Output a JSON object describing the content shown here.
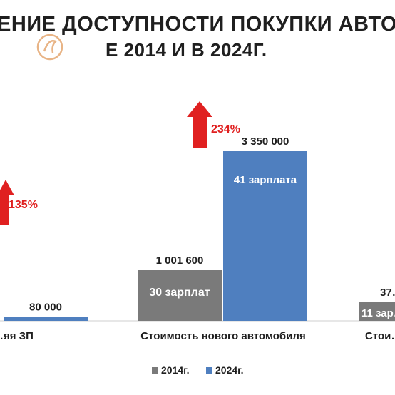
{
  "title": {
    "line1": "ЕНИЕ ДОСТУПНОСТИ ПОКУПКИ АВТОМ",
    "line2": "Е 2014 И В  2024Г."
  },
  "chart_data": {
    "type": "bar",
    "categories": [
      "…яя ЗП",
      "Стоимость нового автомобиля",
      "Стои…"
    ],
    "series": [
      {
        "name": "2014г.",
        "color": "#7a7a7a",
        "values": [
          null,
          1001600,
          null
        ],
        "value_labels": [
          "",
          "1 001 600",
          "37…"
        ],
        "inner_labels": [
          "",
          "30 зарплат",
          "11 зар…"
        ]
      },
      {
        "name": "2024г.",
        "color": "#4f7fbf",
        "values": [
          80000,
          3350000,
          null
        ],
        "value_labels": [
          "80 000",
          "3 350 000",
          ""
        ],
        "inner_labels": [
          "",
          "41 зарплата",
          ""
        ]
      }
    ],
    "annotations": [
      {
        "text": "135%",
        "category": 0,
        "color": "#e02020"
      },
      {
        "text": "234%",
        "category": 1,
        "color": "#e02020"
      }
    ],
    "legend": {
      "position": "bottom",
      "items": [
        "2014г.",
        "2024г."
      ]
    },
    "grid": false,
    "ylim": [
      0,
      3500000
    ]
  }
}
